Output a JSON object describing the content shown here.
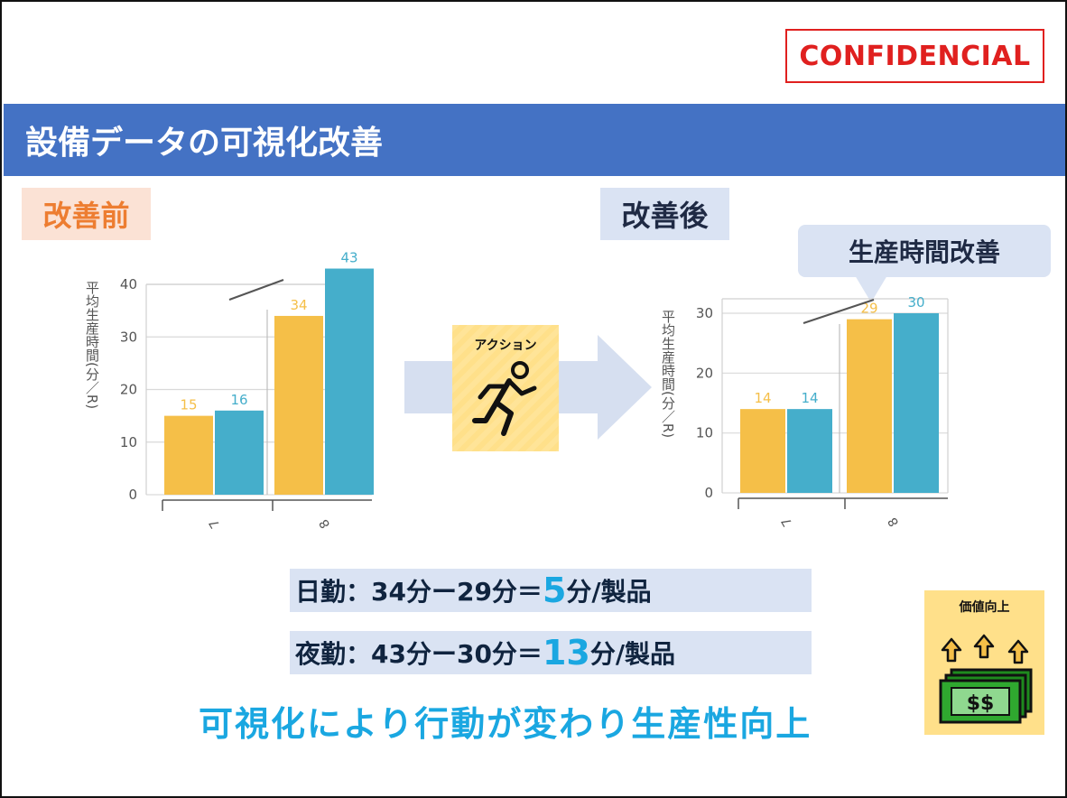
{
  "confidential": "CONFIDENCIAL",
  "title": "設備データの可視化改善",
  "before_label": "改善前",
  "after_label": "改善後",
  "callout": "生産時間改善",
  "action_label": "アクション",
  "value_label": "価値向上",
  "money_label": "$$",
  "calc": {
    "day_prefix": "日勤：34分ー29分＝",
    "day_value": "5",
    "day_suffix": "分/製品",
    "night_prefix": "夜勤：43分ー30分＝",
    "night_value": "13",
    "night_suffix": "分/製品"
  },
  "conclusion": "可視化により行動が変わり生産性向上",
  "colors": {
    "series_a": "#f5bf48",
    "series_b": "#45aecb",
    "accent": "#1aa7e1",
    "title_bar": "#4472c4"
  },
  "chart_data": [
    {
      "type": "bar",
      "panel": "before",
      "ylabel": "平均生産時間(分／R)",
      "categories": [
        "7",
        "8"
      ],
      "series": [
        {
          "values": [
            15,
            34
          ]
        },
        {
          "values": [
            16,
            43
          ]
        }
      ],
      "ylim": [
        0,
        40
      ],
      "yticks": [
        0,
        10,
        20,
        30,
        40
      ],
      "grid": true
    },
    {
      "type": "bar",
      "panel": "after",
      "ylabel": "平均生産時間(分／R)",
      "categories": [
        "7",
        "8"
      ],
      "series": [
        {
          "values": [
            14,
            29
          ]
        },
        {
          "values": [
            14,
            30
          ]
        }
      ],
      "ylim": [
        0,
        30
      ],
      "yticks": [
        0,
        10,
        20,
        30
      ],
      "grid": true
    }
  ]
}
